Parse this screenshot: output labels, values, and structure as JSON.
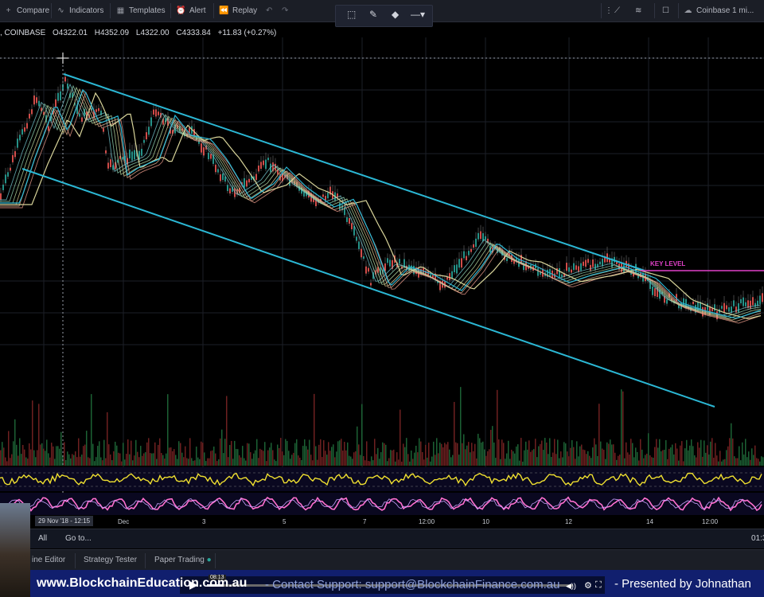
{
  "toolbar": {
    "compare": "Compare",
    "indicators": "Indicators",
    "templates": "Templates",
    "alert": "Alert",
    "replay": "Replay",
    "chart_name": "Coinbase 1 mi..."
  },
  "legend": {
    "symbol": ", COINBASE",
    "open": "O4322.01",
    "high": "H4352.09",
    "low": "L4322.00",
    "close": "C4333.84",
    "change": "+11.83 (+0.27%)"
  },
  "annotation": {
    "key_level": "KEY LEVEL"
  },
  "x_axis": {
    "crosshair_date": "29 Nov '18 - 12:15",
    "labels": [
      "Dec",
      "3",
      "5",
      "7",
      "12:00",
      "10",
      "12",
      "14",
      "12:00"
    ]
  },
  "bottom": {
    "all": "All",
    "goto": "Go to...",
    "time": "01:3"
  },
  "tabs": {
    "pine": "ine Editor",
    "strategy": "Strategy Tester",
    "paper": "Paper Trading"
  },
  "banner": {
    "url": "www.BlockchainEducation.com.au",
    "contact": "-   Contact Support:  support@BlockchainFinance.com.au",
    "presented": "- Presented by Johnathan",
    "video_time": "08:13"
  },
  "colors": {
    "channel": "#2bb7d4",
    "key_level": "#e040c8",
    "candle_up": "#26a69a",
    "candle_down": "#ef5350",
    "osc1": "#f0e030",
    "osc2": "#ff70d0"
  }
}
